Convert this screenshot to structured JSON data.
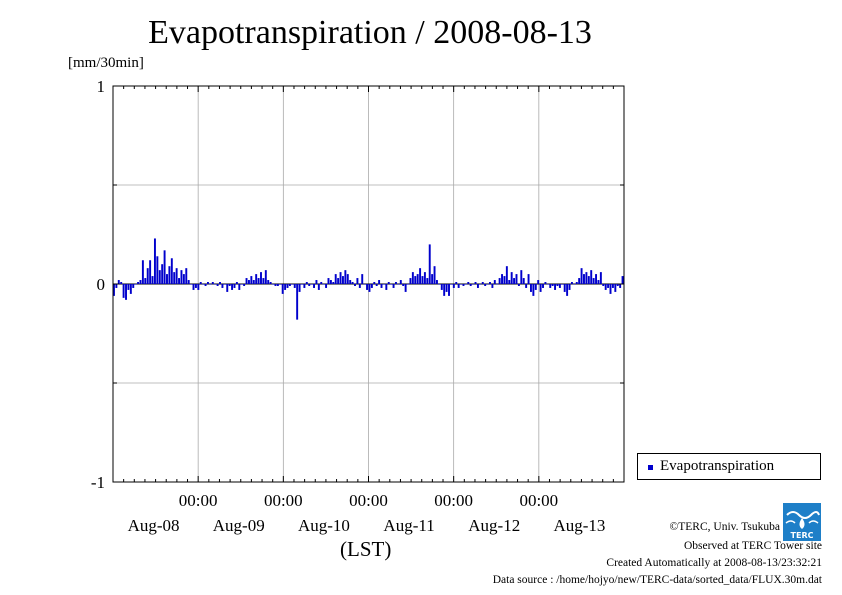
{
  "chart_data": {
    "type": "bar",
    "title": "Evapotranspiration / 2008-08-13",
    "ylabel": "[mm/30min]",
    "xlabel": "(LST)",
    "ylim": [
      -1,
      1
    ],
    "yticks": [
      "-1",
      "0",
      "1"
    ],
    "grid": true,
    "legend_position": "right",
    "time_tick_labels": [
      "00:00",
      "00:00",
      "00:00",
      "00:00",
      "00:00"
    ],
    "date_labels": [
      "Aug-08",
      "Aug-09",
      "Aug-10",
      "Aug-11",
      "Aug-12",
      "Aug-13"
    ],
    "x_start": "2008-08-08T00:00",
    "interval_minutes": 30,
    "series": [
      {
        "name": "Evapotranspiration",
        "color": "#0000cc",
        "values": [
          -0.06,
          -0.02,
          0.02,
          0.01,
          -0.07,
          -0.08,
          -0.03,
          -0.05,
          -0.02,
          0.0,
          0.01,
          0.02,
          0.12,
          0.03,
          0.08,
          0.12,
          0.04,
          0.23,
          0.14,
          0.07,
          0.1,
          0.17,
          0.05,
          0.09,
          0.13,
          0.06,
          0.08,
          0.03,
          0.07,
          0.05,
          0.08,
          0.02,
          0.0,
          -0.03,
          -0.02,
          -0.03,
          0.01,
          0.0,
          -0.01,
          0.01,
          0.0,
          0.01,
          0.0,
          -0.01,
          0.01,
          -0.02,
          0.0,
          -0.04,
          -0.01,
          -0.03,
          -0.02,
          0.01,
          -0.03,
          0.0,
          -0.01,
          0.03,
          0.02,
          0.04,
          0.02,
          0.05,
          0.03,
          0.06,
          0.03,
          0.07,
          0.02,
          0.01,
          0.0,
          -0.01,
          -0.01,
          0.0,
          -0.05,
          -0.03,
          -0.02,
          -0.01,
          0.0,
          -0.02,
          -0.18,
          -0.04,
          0.0,
          -0.02,
          0.01,
          -0.01,
          0.0,
          -0.02,
          0.02,
          -0.03,
          0.01,
          0.0,
          -0.02,
          0.03,
          0.02,
          0.01,
          0.05,
          0.03,
          0.06,
          0.04,
          0.07,
          0.05,
          0.02,
          0.01,
          -0.01,
          0.03,
          -0.02,
          0.05,
          0.0,
          -0.03,
          -0.04,
          -0.02,
          0.01,
          -0.01,
          0.02,
          -0.02,
          0.0,
          -0.03,
          0.01,
          0.0,
          -0.02,
          0.01,
          0.0,
          0.02,
          -0.01,
          -0.04,
          0.0,
          0.03,
          0.06,
          0.04,
          0.05,
          0.08,
          0.04,
          0.06,
          0.03,
          0.2,
          0.05,
          0.09,
          0.02,
          0.0,
          -0.03,
          -0.06,
          -0.04,
          -0.06,
          0.0,
          -0.02,
          0.01,
          -0.02,
          0.0,
          -0.01,
          0.0,
          0.01,
          -0.01,
          0.0,
          0.01,
          -0.02,
          0.0,
          0.01,
          -0.01,
          0.0,
          0.01,
          -0.02,
          0.02,
          0.0,
          0.03,
          0.05,
          0.04,
          0.09,
          0.02,
          0.06,
          0.03,
          0.05,
          -0.01,
          0.07,
          0.03,
          -0.02,
          0.05,
          -0.04,
          -0.06,
          -0.03,
          0.02,
          -0.04,
          -0.02,
          0.01,
          0.0,
          -0.02,
          -0.01,
          -0.03,
          -0.01,
          -0.02,
          0.0,
          -0.04,
          -0.06,
          -0.03,
          0.01,
          0.0,
          0.01,
          0.03,
          0.08,
          0.05,
          0.06,
          0.04,
          0.07,
          0.03,
          0.05,
          0.02,
          0.06,
          -0.01,
          -0.03,
          -0.02,
          -0.05,
          -0.02,
          -0.04,
          -0.01,
          -0.02,
          0.04
        ]
      }
    ]
  },
  "credits": {
    "copyright": "©TERC, Univ. Tsukuba",
    "observed": "Observed at TERC Tower site",
    "created": "Created Automatically at 2008-08-13/23:32:21",
    "source": "Data source : /home/hojyo/new/TERC-data/sorted_data/FLUX.30m.dat"
  },
  "logo": {
    "text": "TERC",
    "color": "#1e7fc8"
  }
}
